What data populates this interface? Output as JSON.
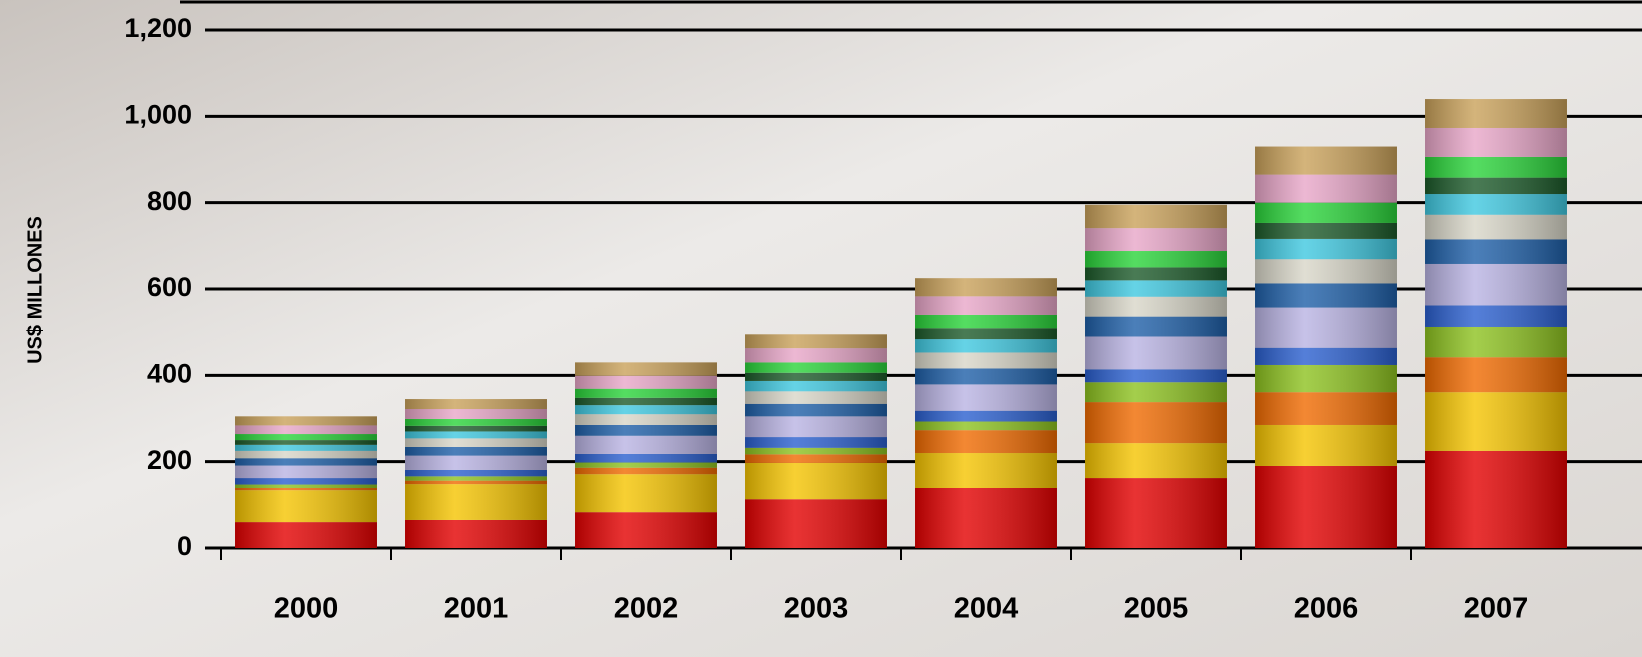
{
  "chart_data": {
    "type": "stacked_bar",
    "y_label": "US$ MILLONES",
    "categories": [
      "2000",
      "2001",
      "2002",
      "2003",
      "2004",
      "2005",
      "2006",
      "2007"
    ],
    "series": [
      {
        "color": "#e30000",
        "values": [
          60,
          65,
          83,
          113,
          139,
          162,
          190,
          225
        ]
      },
      {
        "color": "#f5c400",
        "values": [
          74,
          83,
          88,
          84,
          81,
          81,
          95,
          136
        ]
      },
      {
        "color": "#f06a00",
        "values": [
          5,
          8,
          15,
          20,
          53,
          95,
          76,
          81
        ]
      },
      {
        "color": "#8dc21f",
        "values": [
          8,
          10,
          12,
          15,
          20,
          46,
          63,
          70
        ]
      },
      {
        "color": "#2a5fcf",
        "values": [
          15,
          15,
          20,
          25,
          25,
          30,
          40,
          50
        ]
      },
      {
        "color": "#b9b3e3",
        "values": [
          29,
          33,
          42,
          48,
          61,
          76,
          93,
          96
        ]
      },
      {
        "color": "#1e5fa8",
        "values": [
          17,
          20,
          25,
          29,
          37,
          46,
          56,
          57
        ]
      },
      {
        "color": "#d8d6c8",
        "values": [
          17,
          20,
          25,
          29,
          37,
          46,
          56,
          57
        ]
      },
      {
        "color": "#3fc8e0",
        "values": [
          14,
          16,
          21,
          24,
          31,
          38,
          47,
          48
        ]
      },
      {
        "color": "#1c5a2a",
        "values": [
          11,
          13,
          17,
          19,
          25,
          30,
          37,
          38
        ]
      },
      {
        "color": "#2ad43a",
        "values": [
          14,
          16,
          21,
          24,
          31,
          38,
          47,
          48
        ]
      },
      {
        "color": "#e8a6c8",
        "values": [
          20,
          23,
          30,
          33,
          43,
          53,
          65,
          67
        ]
      },
      {
        "color": "#c9a15a",
        "values": [
          21,
          23,
          31,
          32,
          42,
          54,
          65,
          67
        ]
      }
    ],
    "ylim": [
      0,
      1200
    ],
    "yticks": [
      0,
      200,
      400,
      600,
      800,
      {
        "value": 1000,
        "label": "1,000"
      },
      {
        "value": 1200,
        "label": "1,200"
      }
    ],
    "grid": true
  }
}
